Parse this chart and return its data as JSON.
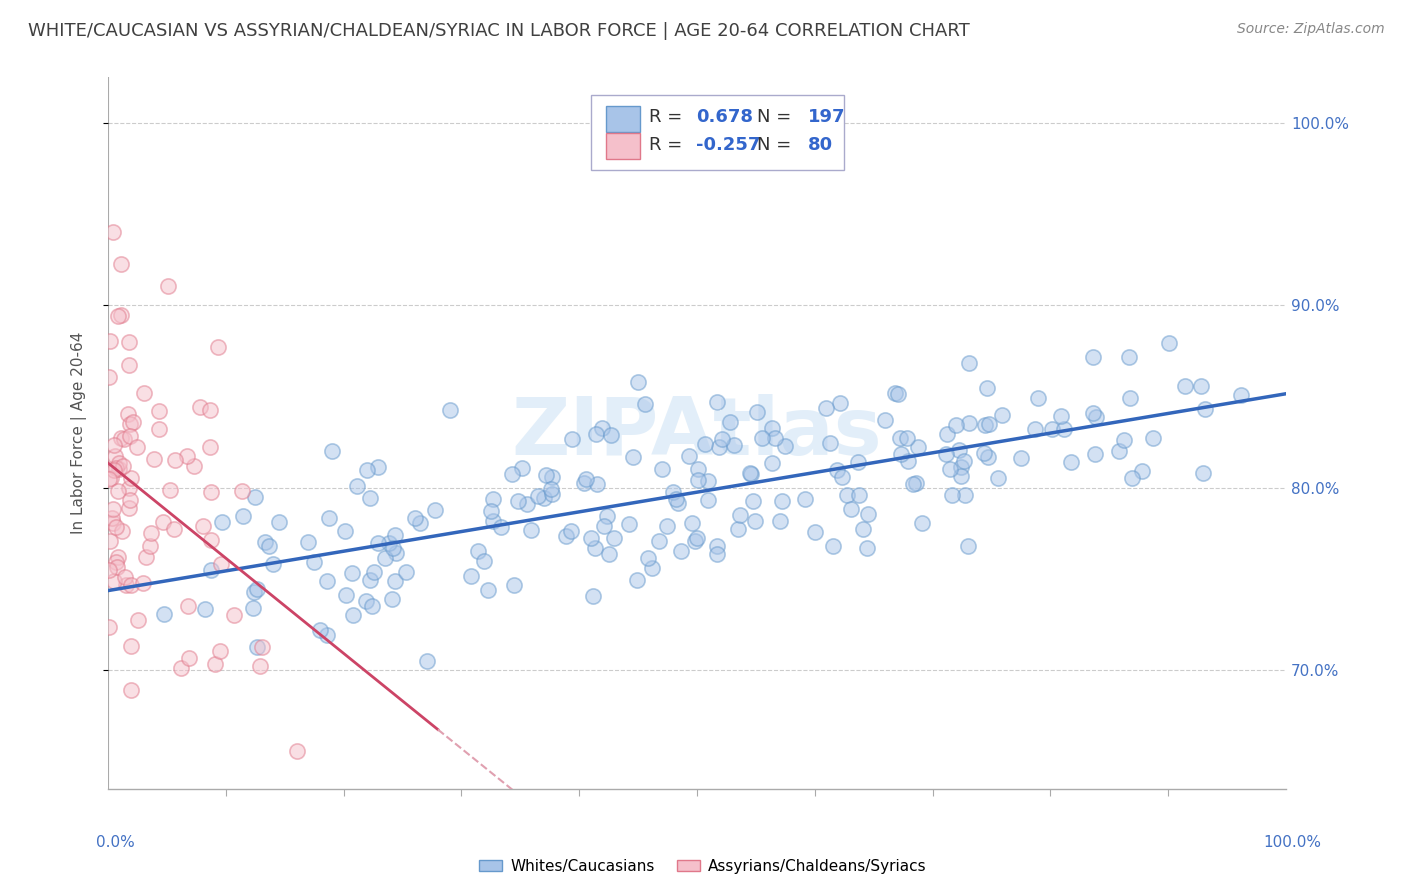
{
  "title": "WHITE/CAUCASIAN VS ASSYRIAN/CHALDEAN/SYRIAC IN LABOR FORCE | AGE 20-64 CORRELATION CHART",
  "source": "Source: ZipAtlas.com",
  "ylabel": "In Labor Force | Age 20-64",
  "ytick_labels": [
    "70.0%",
    "80.0%",
    "90.0%",
    "100.0%"
  ],
  "ytick_values": [
    0.7,
    0.8,
    0.9,
    1.0
  ],
  "xlim": [
    0.0,
    1.0
  ],
  "ylim": [
    0.635,
    1.025
  ],
  "blue_R": 0.678,
  "blue_N": 197,
  "pink_R": -0.257,
  "pink_N": 80,
  "blue_scatter_color": "#a8c4e8",
  "blue_edge_color": "#6699cc",
  "pink_scatter_color": "#f5c0cb",
  "pink_edge_color": "#e0788a",
  "blue_line_color": "#3366bb",
  "pink_line_solid_color": "#cc4466",
  "pink_line_dash_color": "#e0a0b0",
  "legend_text_color": "#3366cc",
  "legend_label_color": "#333333",
  "watermark_color": "#d0e4f5",
  "background_color": "#ffffff",
  "title_color": "#404040",
  "axis_label_color": "#4472c4",
  "grid_color": "#cccccc",
  "title_fontsize": 13,
  "source_fontsize": 10,
  "legend_fontsize": 13,
  "ylabel_fontsize": 11,
  "scatter_size": 120,
  "scatter_alpha": 0.5,
  "scatter_linewidth": 1.2
}
